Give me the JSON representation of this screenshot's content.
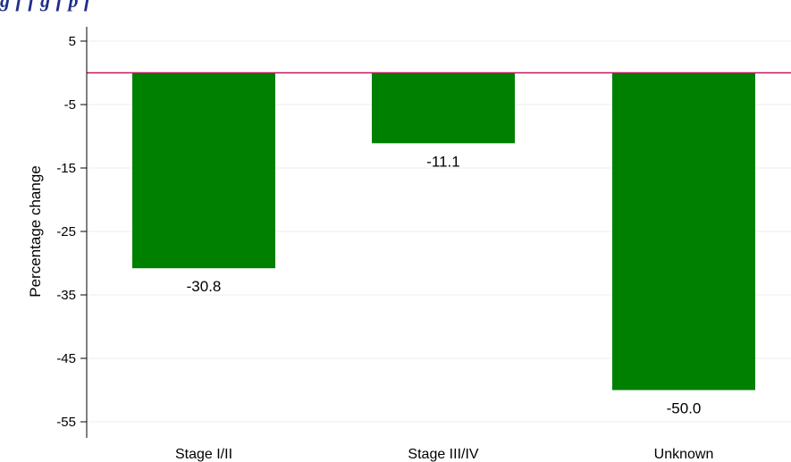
{
  "figure": {
    "title_fragment": "g f                                               f g      f p           f"
  },
  "chart_data": {
    "type": "bar",
    "categories": [
      "Stage I/II",
      "Stage III/IV",
      "Unknown"
    ],
    "values": [
      -30.8,
      -11.1,
      -50.0
    ],
    "value_labels": [
      "-30.8",
      "-11.1",
      "-50.0"
    ],
    "title": "",
    "xlabel": "",
    "ylabel": "Percentage change",
    "ylim": [
      -57,
      7.5
    ],
    "yticks": [
      5,
      -5,
      -15,
      -25,
      -35,
      -45,
      -55
    ],
    "ytick_labels": [
      "5",
      "-5",
      "-15",
      "-25",
      "-35",
      "-45",
      "-55"
    ],
    "reference_line": 0,
    "grid": true,
    "legend": "none",
    "colors": {
      "bar": "#008000",
      "reference_line": "#c2185b",
      "grid": "#e9eef2",
      "axis": "#000000",
      "title": "#1f2f8a"
    }
  }
}
